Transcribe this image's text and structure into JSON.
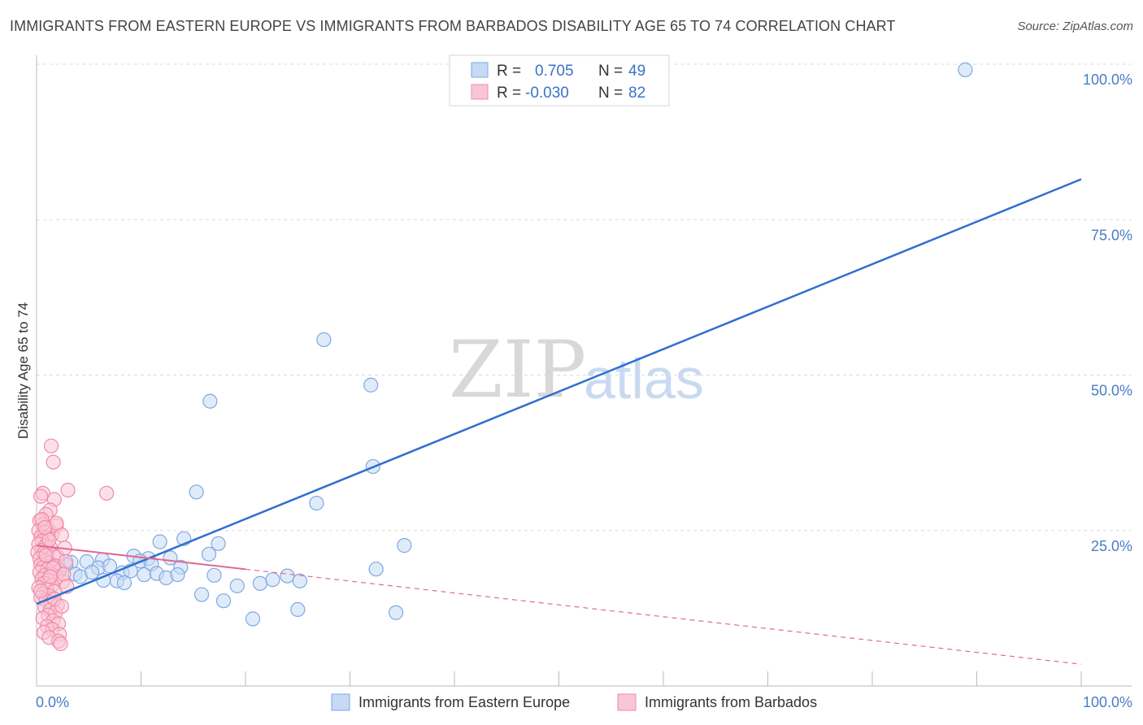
{
  "header": {
    "title": "IMMIGRANTS FROM EASTERN EUROPE VS IMMIGRANTS FROM BARBADOS DISABILITY AGE 65 TO 74 CORRELATION CHART",
    "source": "Source: ZipAtlas.com"
  },
  "watermark": {
    "zip": "ZIP",
    "atlas": "atlas"
  },
  "legend": {
    "r_label": "R =",
    "n_label": "N =",
    "rows": [
      {
        "r": "0.705",
        "n": "49",
        "color": "#7fa8e0"
      },
      {
        "r": "-0.030",
        "n": "82",
        "color": "#f08aaa"
      }
    ]
  },
  "chart_data": {
    "type": "scatter",
    "xlabel": "",
    "ylabel": "Disability Age 65 to 74",
    "xlim": [
      0,
      100
    ],
    "ylim": [
      0,
      100
    ],
    "x_ticks": [
      "0.0%",
      "100.0%"
    ],
    "y_ticks": [
      {
        "value": 25,
        "label": "25.0%"
      },
      {
        "value": 50,
        "label": "50.0%"
      },
      {
        "value": 75,
        "label": "75.0%"
      },
      {
        "value": 100,
        "label": "100.0%"
      }
    ],
    "grid": true,
    "series": [
      {
        "name": "Immigrants from Eastern Europe",
        "color": "#7fa8e0",
        "fill": "#c6daf5",
        "trend": {
          "x": [
            0,
            100
          ],
          "y": [
            13.2,
            81.5
          ],
          "style": "solid"
        },
        "points": [
          [
            88.9,
            99.1
          ],
          [
            27.5,
            55.7
          ],
          [
            32.0,
            48.4
          ],
          [
            16.6,
            45.8
          ],
          [
            32.2,
            35.3
          ],
          [
            15.3,
            31.2
          ],
          [
            26.8,
            29.4
          ],
          [
            35.2,
            22.6
          ],
          [
            14.1,
            23.7
          ],
          [
            11.8,
            23.2
          ],
          [
            16.5,
            21.2
          ],
          [
            17.4,
            22.9
          ],
          [
            9.3,
            20.9
          ],
          [
            10.7,
            20.5
          ],
          [
            12.8,
            20.6
          ],
          [
            9.9,
            20.1
          ],
          [
            11.0,
            19.6
          ],
          [
            13.8,
            19.1
          ],
          [
            6.3,
            20.3
          ],
          [
            4.8,
            20.0
          ],
          [
            5.9,
            19.0
          ],
          [
            7.0,
            19.3
          ],
          [
            8.2,
            18.2
          ],
          [
            9.0,
            18.5
          ],
          [
            10.3,
            17.9
          ],
          [
            11.5,
            18.1
          ],
          [
            12.4,
            17.4
          ],
          [
            13.5,
            17.9
          ],
          [
            3.3,
            19.9
          ],
          [
            2.2,
            18.7
          ],
          [
            2.8,
            19.5
          ],
          [
            3.7,
            18.0
          ],
          [
            4.2,
            17.6
          ],
          [
            5.3,
            18.3
          ],
          [
            6.4,
            17.0
          ],
          [
            7.7,
            16.9
          ],
          [
            8.4,
            16.6
          ],
          [
            24.0,
            17.7
          ],
          [
            21.4,
            16.5
          ],
          [
            22.6,
            17.1
          ],
          [
            17.0,
            17.8
          ],
          [
            32.5,
            18.8
          ],
          [
            25.2,
            16.9
          ],
          [
            15.8,
            14.7
          ],
          [
            17.9,
            13.7
          ],
          [
            19.2,
            16.1
          ],
          [
            25.0,
            12.3
          ],
          [
            20.7,
            10.8
          ],
          [
            34.4,
            11.8
          ]
        ]
      },
      {
        "name": "Immigrants from Barbados",
        "color": "#f08aaa",
        "fill": "#f9c6d5",
        "trend": {
          "x": [
            0,
            100
          ],
          "y": [
            22.6,
            3.5
          ],
          "solid_until": 20,
          "style": "dashed"
        },
        "points": [
          [
            1.4,
            38.6
          ],
          [
            1.6,
            36.0
          ],
          [
            3.0,
            31.5
          ],
          [
            6.7,
            31.0
          ],
          [
            0.6,
            31.0
          ],
          [
            1.7,
            30.0
          ],
          [
            0.4,
            30.5
          ],
          [
            1.3,
            28.3
          ],
          [
            0.9,
            27.6
          ],
          [
            0.3,
            26.6
          ],
          [
            0.6,
            26.0
          ],
          [
            1.1,
            25.3
          ],
          [
            0.2,
            25.0
          ],
          [
            0.8,
            24.7
          ],
          [
            1.5,
            24.5
          ],
          [
            0.4,
            24.0
          ],
          [
            1.0,
            23.8
          ],
          [
            0.5,
            23.3
          ],
          [
            0.2,
            22.8
          ],
          [
            0.9,
            22.6
          ],
          [
            1.3,
            22.3
          ],
          [
            0.5,
            21.8
          ],
          [
            0.1,
            21.5
          ],
          [
            0.7,
            21.3
          ],
          [
            1.6,
            21.0
          ],
          [
            2.0,
            20.8
          ],
          [
            0.3,
            20.5
          ],
          [
            0.8,
            20.1
          ],
          [
            1.2,
            19.8
          ],
          [
            0.4,
            19.5
          ],
          [
            1.8,
            19.3
          ],
          [
            0.6,
            19.0
          ],
          [
            1.0,
            18.7
          ],
          [
            2.2,
            18.5
          ],
          [
            0.3,
            18.3
          ],
          [
            1.4,
            18.0
          ],
          [
            0.8,
            17.8
          ],
          [
            1.9,
            17.5
          ],
          [
            0.5,
            17.2
          ],
          [
            1.1,
            17.0
          ],
          [
            2.5,
            16.8
          ],
          [
            0.7,
            16.5
          ],
          [
            1.5,
            16.2
          ],
          [
            0.2,
            15.8
          ],
          [
            1.0,
            15.5
          ],
          [
            1.7,
            15.2
          ],
          [
            0.6,
            14.8
          ],
          [
            1.2,
            14.5
          ],
          [
            0.4,
            14.2
          ],
          [
            0.9,
            13.8
          ],
          [
            1.4,
            13.4
          ],
          [
            2.0,
            13.0
          ],
          [
            0.8,
            12.6
          ],
          [
            1.3,
            12.2
          ],
          [
            1.8,
            11.8
          ],
          [
            1.1,
            11.4
          ],
          [
            0.6,
            10.9
          ],
          [
            1.6,
            10.5
          ],
          [
            2.1,
            10.0
          ],
          [
            1.0,
            9.6
          ],
          [
            1.5,
            9.1
          ],
          [
            0.7,
            8.6
          ],
          [
            2.2,
            8.3
          ],
          [
            1.2,
            7.8
          ],
          [
            2.1,
            7.2
          ],
          [
            2.3,
            6.8
          ],
          [
            0.5,
            26.8
          ],
          [
            1.9,
            25.8
          ],
          [
            2.4,
            24.3
          ],
          [
            1.2,
            23.5
          ],
          [
            2.7,
            22.2
          ],
          [
            0.9,
            21.0
          ],
          [
            2.8,
            20.0
          ],
          [
            1.6,
            19.0
          ],
          [
            2.6,
            18.0
          ],
          [
            1.3,
            17.6
          ],
          [
            2.9,
            16.0
          ],
          [
            0.4,
            15.3
          ],
          [
            1.7,
            14.0
          ],
          [
            2.4,
            12.8
          ],
          [
            1.9,
            26.2
          ],
          [
            0.8,
            25.5
          ]
        ]
      }
    ]
  }
}
